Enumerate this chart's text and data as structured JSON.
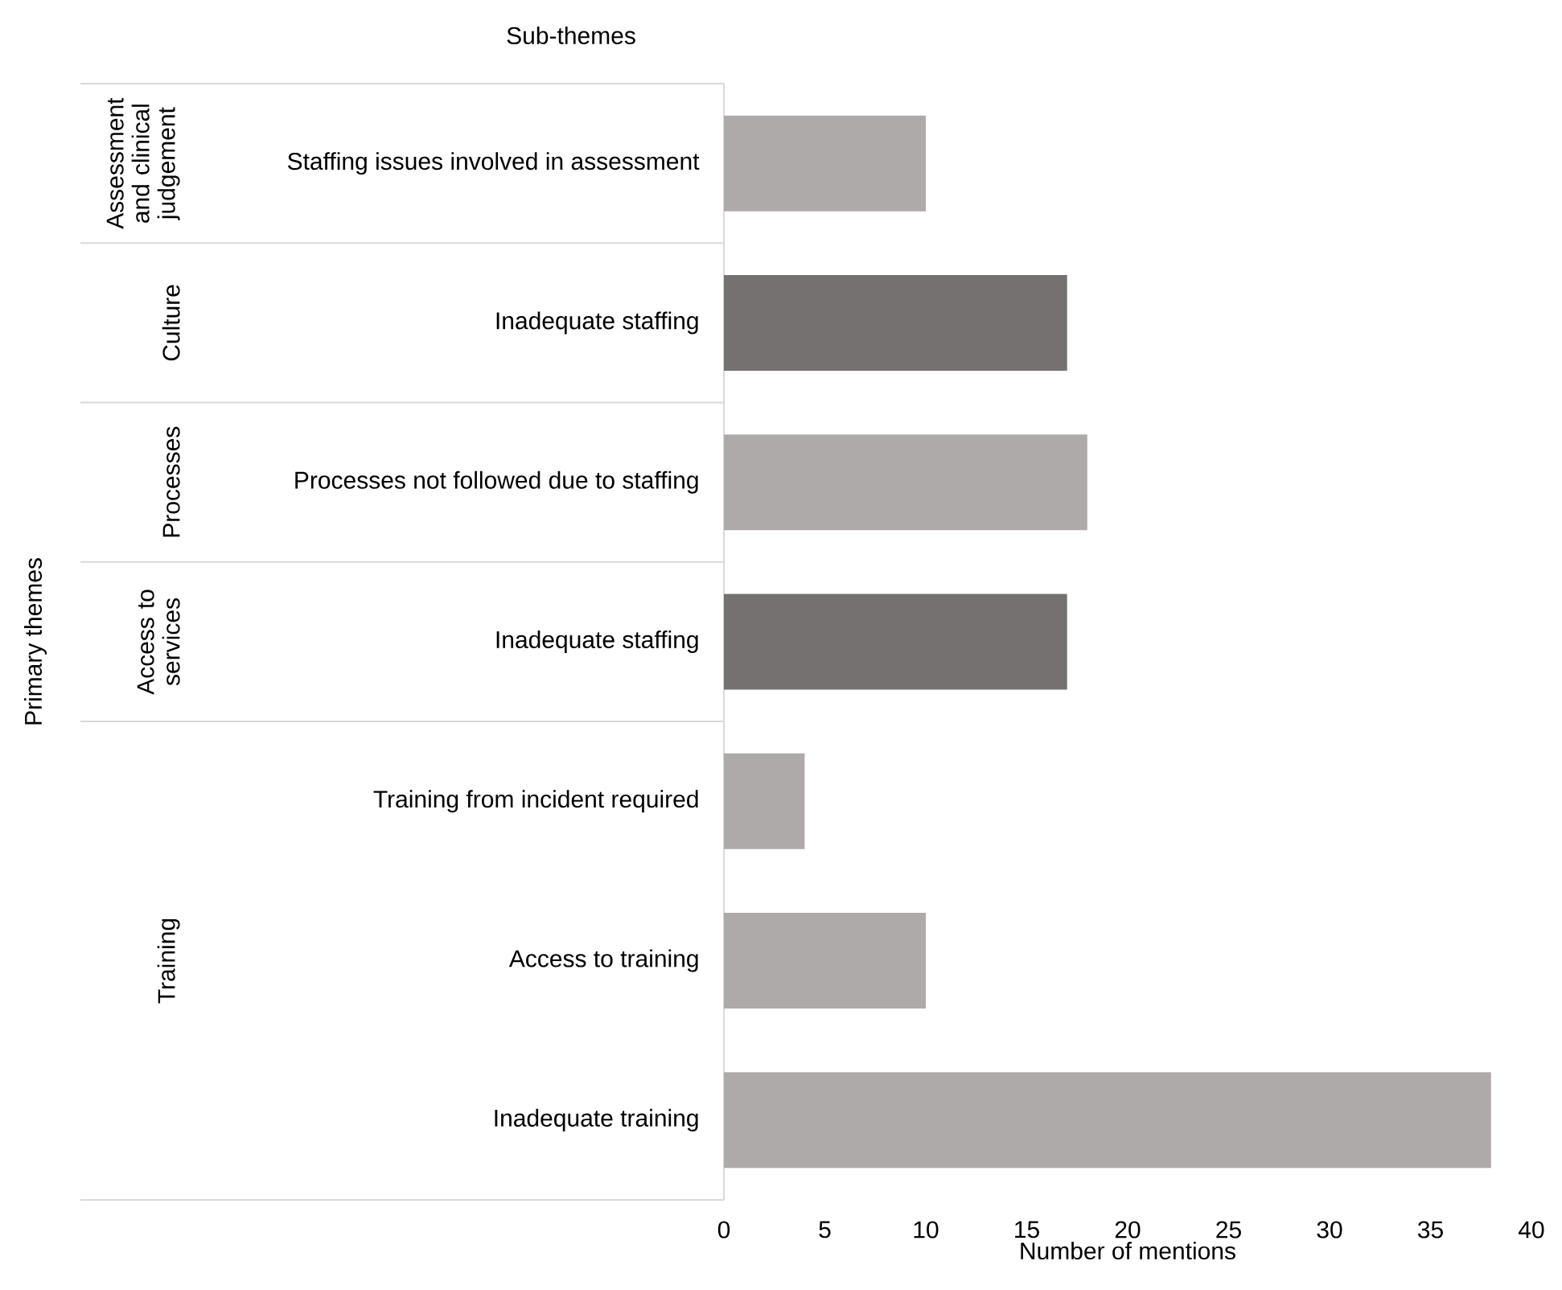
{
  "chart_data": {
    "type": "bar",
    "orientation": "horizontal",
    "categories": [
      "Staffing issues involved in assessment",
      "Inadequate staffing",
      "Processes not followed due to staffing",
      "Inadequate staffing",
      "Training from incident required",
      "Access to training",
      "Inadequate training"
    ],
    "values": [
      10,
      17,
      18,
      17,
      4,
      10,
      38
    ],
    "colors": [
      "#aeaaaa",
      "#767171",
      "#aeaaaa",
      "#767171",
      "#aeaaaa",
      "#aeaaaa",
      "#aeaaaa"
    ],
    "xlim": [
      0,
      40
    ],
    "xticks": [
      0,
      5,
      10,
      15,
      20,
      25,
      30,
      35,
      40
    ],
    "xlabel": "Number of mentions",
    "annotations": [
      "Sub-themes",
      "Primary themes",
      "Assessment and clinical judgement",
      "Culture",
      "Processes",
      "Access to services",
      "Training"
    ],
    "grid": false
  }
}
